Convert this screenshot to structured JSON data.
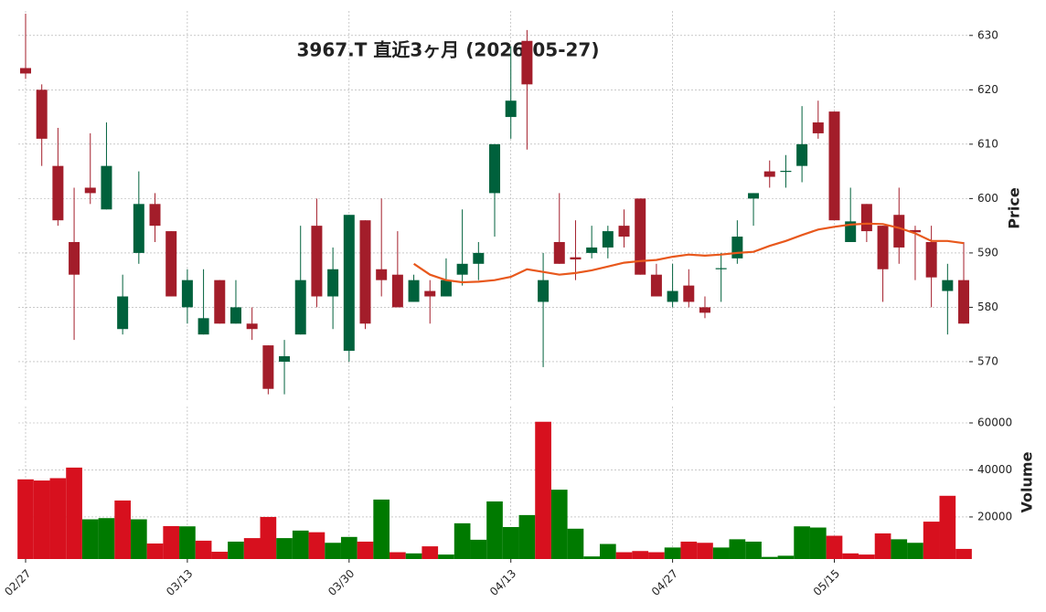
{
  "chart_data": {
    "type": "candlestick",
    "title": "3967.T 直近3ヶ月 (2026-05-27)",
    "categories": [
      "02/27",
      null,
      null,
      null,
      null,
      null,
      null,
      null,
      null,
      null,
      "03/13",
      null,
      null,
      null,
      null,
      null,
      null,
      null,
      null,
      null,
      "03/30",
      null,
      null,
      null,
      null,
      null,
      null,
      null,
      null,
      null,
      "04/13",
      null,
      null,
      null,
      null,
      null,
      null,
      null,
      null,
      null,
      "04/27",
      null,
      null,
      null,
      null,
      null,
      null,
      null,
      null,
      null,
      "05/15",
      null,
      null,
      null,
      null,
      null,
      null,
      null,
      null
    ],
    "open": [
      624,
      620,
      606,
      592,
      602,
      598,
      576,
      590,
      599,
      594,
      580,
      575,
      585,
      577,
      577,
      573,
      570,
      575,
      595,
      582,
      572,
      596,
      587,
      586,
      581,
      583,
      582,
      586,
      588,
      601,
      615,
      629,
      581,
      592,
      589.2,
      590,
      591,
      595,
      600,
      586,
      581,
      584,
      580,
      587,
      589,
      600,
      605,
      605,
      606,
      614,
      616,
      592,
      599,
      595,
      597,
      594.2,
      592,
      583,
      585
    ],
    "high": [
      634,
      621,
      613,
      602,
      612,
      614,
      586,
      605,
      601,
      594,
      587,
      587,
      585,
      585,
      580,
      573,
      574,
      595,
      600,
      591,
      597,
      596,
      600,
      594,
      586,
      585,
      589,
      598,
      592,
      610,
      628,
      631,
      590,
      601,
      596,
      595,
      595,
      598,
      600,
      588,
      588,
      587,
      582,
      590,
      596,
      601,
      607,
      608,
      617,
      618,
      616,
      602,
      599,
      595,
      602,
      595,
      595,
      588,
      592
    ],
    "low": [
      622,
      606,
      595,
      574,
      599,
      598,
      575,
      588,
      592,
      582,
      577,
      575,
      577,
      577,
      574,
      564,
      564,
      575,
      580,
      576,
      570,
      576,
      582,
      580,
      581,
      577,
      582,
      584,
      585,
      593,
      611,
      609,
      569,
      588,
      585,
      589,
      589,
      591,
      586,
      582,
      580,
      580,
      578,
      581,
      588,
      595,
      602,
      602,
      603,
      611,
      596,
      592,
      592,
      581,
      588,
      585,
      580,
      575,
      577
    ],
    "close": [
      623,
      611,
      596,
      586,
      601,
      606,
      582,
      599,
      595,
      582,
      585,
      578,
      577,
      580,
      576,
      565,
      571,
      585,
      582,
      587,
      597,
      577,
      585,
      580,
      585,
      582,
      585,
      588,
      590,
      610,
      618,
      621,
      585,
      588,
      588.8,
      591,
      594,
      593,
      586,
      582,
      583,
      581,
      579,
      587.2,
      593,
      601,
      604,
      605.1,
      610,
      612,
      596,
      595.8,
      594,
      587,
      591,
      593.8,
      585.5,
      585,
      577
    ],
    "up_color": "#00613c",
    "down_color": "#a31d2a",
    "ylabel": "Price",
    "ylim": [
      562.6,
      634.5
    ],
    "yticks": [
      570,
      580,
      590,
      600,
      610,
      620,
      630
    ],
    "grid": true,
    "ma": {
      "color": "#e8581c",
      "values": [
        null,
        null,
        null,
        null,
        null,
        null,
        null,
        null,
        null,
        null,
        null,
        null,
        null,
        null,
        null,
        null,
        null,
        null,
        null,
        null,
        null,
        null,
        null,
        null,
        588,
        586,
        585,
        584.6,
        584.7,
        585,
        585.6,
        587,
        586.5,
        586,
        586.3,
        586.8,
        587.5,
        588.2,
        588.5,
        588.7,
        589.3,
        589.7,
        589.5,
        589.7,
        590,
        590.2,
        591.3,
        592.2,
        593.3,
        594.3,
        594.8,
        595.2,
        595.4,
        595.3,
        594.6,
        593.6,
        592.2,
        592.2,
        591.8
      ]
    },
    "volume": {
      "values": [
        36000,
        35500,
        36500,
        41000,
        19000,
        19500,
        27000,
        19000,
        8700,
        16100,
        16000,
        9900,
        5200,
        9500,
        11000,
        20000,
        11000,
        14200,
        13500,
        9000,
        11500,
        9500,
        27400,
        5000,
        4500,
        7500,
        4000,
        17300,
        10300,
        26600,
        15700,
        20800,
        60500,
        31600,
        15000,
        3200,
        8500,
        5000,
        5500,
        5000,
        7000,
        9500,
        9000,
        7000,
        10500,
        9500,
        3000,
        3500,
        16000,
        15500,
        12000,
        4500,
        4000,
        13000,
        10500,
        9000,
        18000,
        29000,
        6400
      ],
      "up_color": "#007a00",
      "down_color": "#d7101e",
      "ylabel": "Volume",
      "ylim": [
        2100,
        67000
      ],
      "yticks": [
        20000,
        40000,
        60000
      ]
    }
  }
}
